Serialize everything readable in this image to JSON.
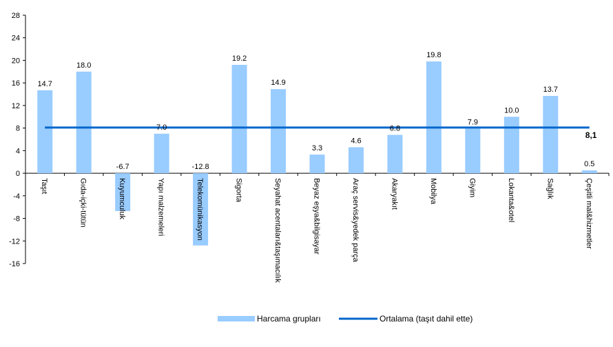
{
  "chart_data": {
    "type": "bar",
    "categories": [
      "Taşıt",
      "Gıda-içki-tütün",
      "Kuyumculuk",
      "Yapı malzemeleri",
      "Telekomünikasyon",
      "Sigorta",
      "Seyahat acentaları&taşımacılık",
      "Beyaz eşya&bilgisayar",
      "Araç servis&yedek parça",
      "Akaryakıt",
      "Mobilya",
      "Giyim",
      "Lokanta&otel",
      "Sağlık",
      "Çeşitli mal&hizmetler"
    ],
    "series": [
      {
        "name": "Harcama grupları",
        "values": [
          14.7,
          18.0,
          -6.7,
          7.0,
          -12.8,
          19.2,
          14.9,
          3.3,
          4.6,
          6.8,
          19.8,
          7.9,
          10.0,
          13.7,
          0.5
        ]
      }
    ],
    "data_labels": [
      "14.7",
      "18.0",
      "-6.7",
      "7.0",
      "-12.8",
      "19.2",
      "14.9",
      "3.3",
      "4.6",
      "6.8",
      "19.8",
      "7.9",
      "10.0",
      "13.7",
      "0.5"
    ],
    "average": {
      "name": "Ortalama (taşıt dahil ette)",
      "value": 8.1,
      "label": "8,1"
    },
    "ylim": [
      -16,
      28
    ],
    "yticks": [
      "-16",
      "-12",
      "-8",
      "-4",
      "0",
      "4",
      "8",
      "12",
      "16",
      "20",
      "24",
      "28"
    ],
    "ytick_values": [
      -16,
      -12,
      -8,
      -4,
      0,
      4,
      8,
      12,
      16,
      20,
      24,
      28
    ],
    "grid": false,
    "legend_position": "bottom",
    "colors": {
      "bar": "#99ccff",
      "line": "#0066cc",
      "axis": "#000000"
    }
  }
}
